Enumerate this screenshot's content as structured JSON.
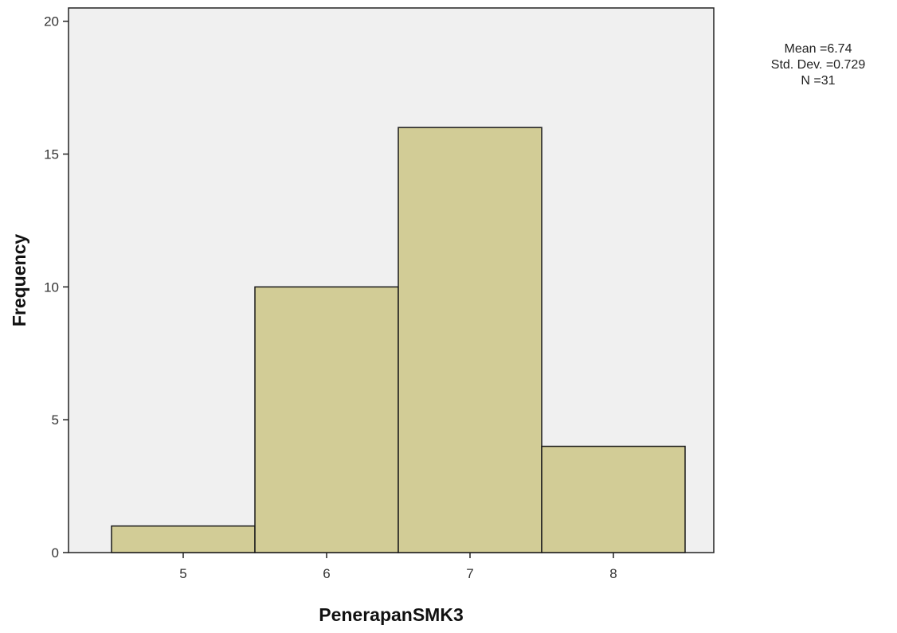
{
  "chart_data": {
    "type": "bar",
    "subtype": "histogram",
    "title": "",
    "xlabel": "PenerapanSMK3",
    "ylabel": "Frequency",
    "categories": [
      "5",
      "6",
      "7",
      "8"
    ],
    "x": [
      5,
      6,
      7,
      8
    ],
    "values": [
      1,
      10,
      16,
      4
    ],
    "xlim": [
      4.2,
      8.7
    ],
    "ylim": [
      0,
      20.5
    ],
    "yticks": [
      0,
      5,
      10,
      15,
      20
    ],
    "grid": false,
    "legend": "none",
    "bar_color": "#d2cc96",
    "bar_edge_color": "#1a1a1a",
    "plot_background": "#f0f0f0",
    "stats": {
      "mean": "Mean =6.74",
      "std_dev": "Std. Dev. =0.729",
      "n": "N =31"
    }
  }
}
